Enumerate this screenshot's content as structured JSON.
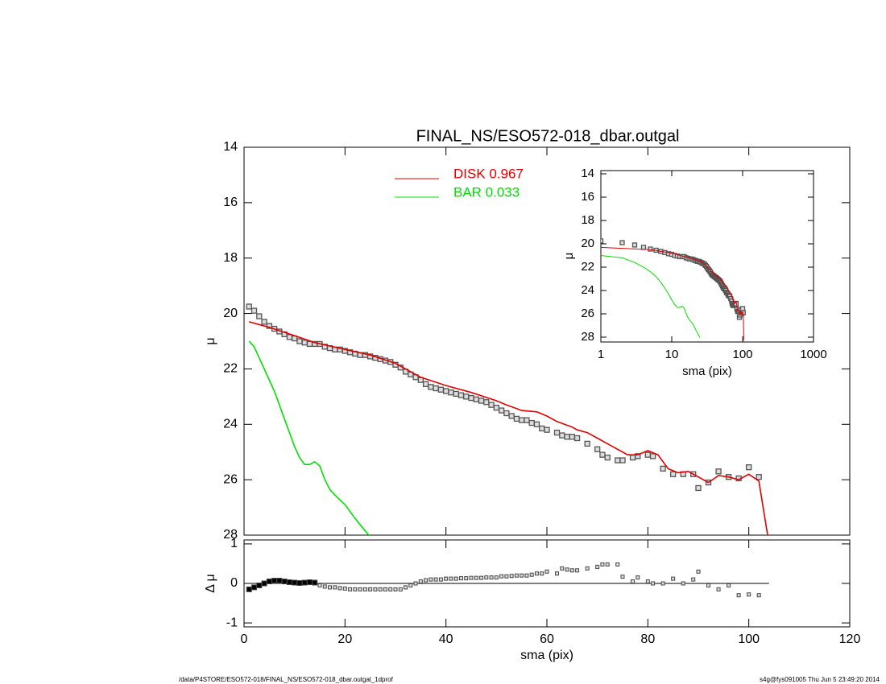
{
  "chart_data": [
    {
      "type": "line",
      "title": "FINAL_NS/ESO572-018_dbar.outgal",
      "ylabel": "μ",
      "xlim": [
        0,
        120
      ],
      "xticks": [
        0,
        20,
        40,
        60,
        80,
        100,
        120
      ],
      "ylim": [
        14,
        28
      ],
      "yticks": [
        14,
        16,
        18,
        20,
        22,
        24,
        26,
        28
      ],
      "inverted_y": true,
      "points": {
        "color": "#555555",
        "x": [
          1,
          2,
          3,
          4,
          5,
          6,
          7,
          8,
          9,
          10,
          11,
          12,
          13,
          14,
          15,
          16,
          17,
          18,
          19,
          20,
          21,
          22,
          23,
          24,
          25,
          26,
          27,
          28,
          29,
          30,
          31,
          32,
          33,
          34,
          35,
          36,
          37,
          38,
          39,
          40,
          41,
          42,
          43,
          44,
          45,
          46,
          47,
          48,
          49,
          50,
          51,
          52,
          53,
          54,
          55,
          56,
          57,
          58,
          59,
          60,
          62,
          63,
          64,
          65,
          66,
          68,
          70,
          71,
          72,
          74,
          75,
          77,
          78,
          80,
          81,
          83,
          85,
          87,
          89,
          90,
          92,
          94,
          96,
          98,
          100,
          102
        ],
        "values": [
          19.75,
          19.9,
          20.1,
          20.3,
          20.45,
          20.55,
          20.65,
          20.75,
          20.85,
          20.9,
          21.0,
          21.05,
          21.1,
          21.1,
          21.1,
          21.2,
          21.25,
          21.3,
          21.3,
          21.35,
          21.4,
          21.45,
          21.5,
          21.5,
          21.55,
          21.6,
          21.65,
          21.7,
          21.75,
          21.85,
          21.95,
          22.1,
          22.2,
          22.3,
          22.4,
          22.55,
          22.65,
          22.7,
          22.75,
          22.8,
          22.85,
          22.9,
          22.95,
          23.0,
          23.05,
          23.1,
          23.15,
          23.2,
          23.3,
          23.4,
          23.5,
          23.6,
          23.7,
          23.8,
          23.85,
          23.85,
          23.95,
          24.0,
          24.15,
          24.2,
          24.3,
          24.4,
          24.45,
          24.45,
          24.5,
          24.7,
          24.9,
          25.1,
          25.2,
          25.3,
          25.3,
          25.2,
          25.15,
          25.1,
          25.15,
          25.6,
          25.8,
          25.8,
          25.8,
          26.3,
          26.1,
          25.7,
          25.9,
          25.95,
          25.55,
          25.9
        ]
      },
      "series": [
        {
          "name": "DISK  0.967",
          "color": "#e00000",
          "x": [
            1,
            5,
            10,
            14,
            20,
            25,
            30,
            35,
            40,
            45,
            50,
            52,
            55,
            58,
            60,
            62,
            65,
            66,
            68,
            70,
            72,
            74,
            76,
            78,
            80,
            82,
            84,
            86,
            88,
            90,
            92,
            94,
            96,
            98,
            100,
            102,
            104
          ],
          "values": [
            20.3,
            20.5,
            20.8,
            21.05,
            21.3,
            21.5,
            21.8,
            22.3,
            22.6,
            22.85,
            23.15,
            23.3,
            23.5,
            23.55,
            23.7,
            23.9,
            24.1,
            24.2,
            24.3,
            24.5,
            24.7,
            24.9,
            25.1,
            25.1,
            24.95,
            25.1,
            25.6,
            25.75,
            25.7,
            25.9,
            26.1,
            25.85,
            25.9,
            26.0,
            25.8,
            26.05,
            28.3
          ]
        },
        {
          "name": "BAR  0.033",
          "color": "#00e000",
          "x": [
            1,
            2,
            3,
            4,
            5,
            6,
            7,
            8,
            9,
            10,
            11,
            12,
            13,
            14,
            15,
            16,
            17,
            18,
            20,
            22,
            24,
            25
          ],
          "values": [
            21.0,
            21.2,
            21.6,
            22.0,
            22.4,
            22.8,
            23.3,
            23.8,
            24.3,
            24.8,
            25.2,
            25.45,
            25.45,
            25.35,
            25.5,
            26.0,
            26.35,
            26.55,
            26.9,
            27.4,
            27.85,
            28.05
          ]
        }
      ]
    },
    {
      "type": "scatter",
      "ylabel": "Δ μ",
      "xlabel": "sma (pix)",
      "xlim": [
        0,
        120
      ],
      "xticks": [
        0,
        20,
        40,
        60,
        80,
        100,
        120
      ],
      "ylim": [
        -1.1,
        1.1
      ],
      "yticks": [
        -1,
        0,
        1
      ],
      "values": [
        -0.15,
        -0.1,
        -0.05,
        0.0,
        0.05,
        0.07,
        0.07,
        0.05,
        0.03,
        0.02,
        0.01,
        0.02,
        0.03,
        0.02,
        -0.05,
        -0.08,
        -0.1,
        -0.1,
        -0.12,
        -0.13,
        -0.15,
        -0.15,
        -0.15,
        -0.15,
        -0.15,
        -0.15,
        -0.15,
        -0.15,
        -0.15,
        -0.15,
        -0.15,
        -0.1,
        -0.05,
        0.0,
        0.05,
        0.08,
        0.1,
        0.1,
        0.1,
        0.12,
        0.12,
        0.12,
        0.13,
        0.13,
        0.14,
        0.14,
        0.14,
        0.15,
        0.15,
        0.15,
        0.18,
        0.18,
        0.19,
        0.2,
        0.2,
        0.2,
        0.22,
        0.25,
        0.25,
        0.3,
        0.25,
        0.38,
        0.35,
        0.33,
        0.33,
        0.38,
        0.42,
        0.48,
        0.48,
        0.48,
        0.17,
        0.05,
        0.15,
        0.05,
        0.0,
        0.0,
        0.12,
        0.0,
        0.1,
        0.3,
        -0.05,
        -0.15,
        -0.05,
        -0.3,
        -0.28,
        -0.3
      ]
    },
    {
      "type": "line",
      "xscale": "log",
      "xlabel": "sma (pix)",
      "ylabel": "μ",
      "xlim": [
        1,
        1000
      ],
      "xticks": [
        1,
        10,
        100,
        1000
      ],
      "ylim": [
        14,
        28
      ],
      "yticks": [
        14,
        16,
        18,
        20,
        22,
        24,
        26,
        28
      ],
      "inverted_y": true
    }
  ],
  "footer": {
    "left": "/data/P4STORE/ESO572-018/FINAL_NS/ESO572-018_dbar.outgal_1dprof",
    "right": "s4g@fys091005  Thu Jun  5 23:49:20 2014"
  }
}
